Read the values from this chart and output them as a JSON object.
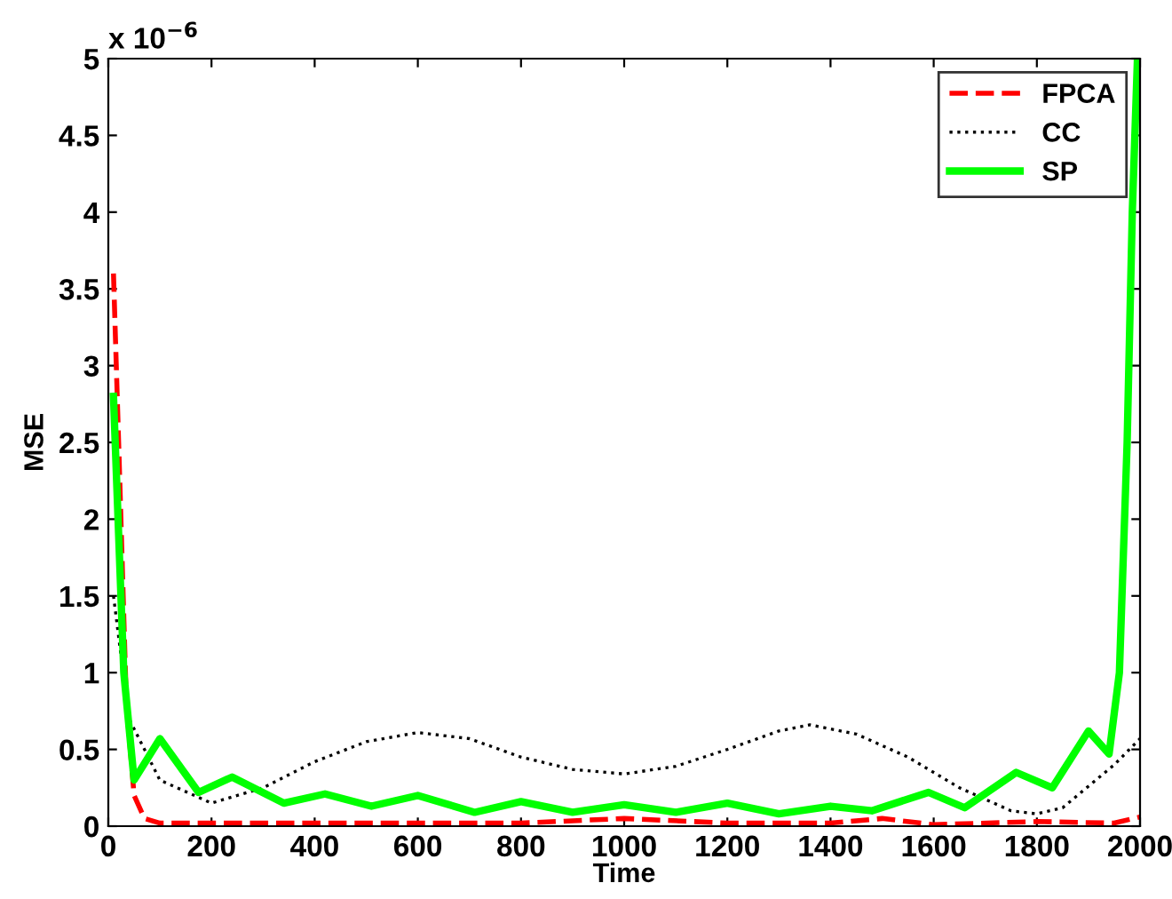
{
  "chart_data": {
    "type": "line",
    "xlabel": "Time",
    "ylabel": "MSE",
    "annotations": [
      "x 10$^{−6}$"
    ],
    "xlim": [
      0,
      2000
    ],
    "xticks": [
      0,
      200,
      400,
      600,
      800,
      1000,
      1200,
      1400,
      1600,
      1800,
      2000
    ],
    "ylim": [
      0,
      5
    ],
    "yticks": [
      0,
      0.5,
      1,
      1.5,
      2,
      2.5,
      3,
      3.5,
      4,
      4.5,
      5
    ],
    "legend": "top right",
    "grid": false,
    "series": [
      {
        "name": "FPCA",
        "color": "#ff0000",
        "line_style": "dashed",
        "x": [
          10,
          20,
          35,
          50,
          70,
          100,
          200,
          400,
          600,
          800,
          1000,
          1200,
          1400,
          1500,
          1600,
          1800,
          1950,
          2000
        ],
        "values": [
          3.6,
          2.5,
          0.8,
          0.2,
          0.05,
          0.02,
          0.02,
          0.02,
          0.02,
          0.02,
          0.05,
          0.02,
          0.02,
          0.05,
          0.01,
          0.03,
          0.02,
          0.06
        ]
      },
      {
        "name": "CC",
        "color": "#000000",
        "line_style": "dotted",
        "x": [
          10,
          40,
          100,
          200,
          300,
          400,
          500,
          600,
          700,
          800,
          900,
          1000,
          1100,
          1200,
          1300,
          1360,
          1450,
          1550,
          1650,
          1750,
          1800,
          1850,
          1950,
          2000
        ],
        "values": [
          1.5,
          0.7,
          0.3,
          0.15,
          0.25,
          0.42,
          0.55,
          0.61,
          0.57,
          0.45,
          0.37,
          0.34,
          0.39,
          0.5,
          0.62,
          0.66,
          0.6,
          0.45,
          0.25,
          0.1,
          0.08,
          0.12,
          0.4,
          0.57
        ]
      },
      {
        "name": "SP",
        "color": "#00ff00",
        "line_style": "solid",
        "x": [
          10,
          30,
          50,
          100,
          175,
          240,
          340,
          420,
          510,
          600,
          710,
          800,
          900,
          1000,
          1100,
          1200,
          1300,
          1400,
          1480,
          1590,
          1660,
          1760,
          1830,
          1900,
          1940,
          1960,
          1975,
          1985,
          1995
        ],
        "values": [
          2.8,
          1.0,
          0.3,
          0.57,
          0.22,
          0.32,
          0.15,
          0.21,
          0.13,
          0.2,
          0.09,
          0.16,
          0.09,
          0.14,
          0.09,
          0.15,
          0.08,
          0.13,
          0.1,
          0.22,
          0.12,
          0.35,
          0.25,
          0.62,
          0.47,
          1.0,
          2.5,
          4.0,
          5.0
        ]
      }
    ]
  }
}
